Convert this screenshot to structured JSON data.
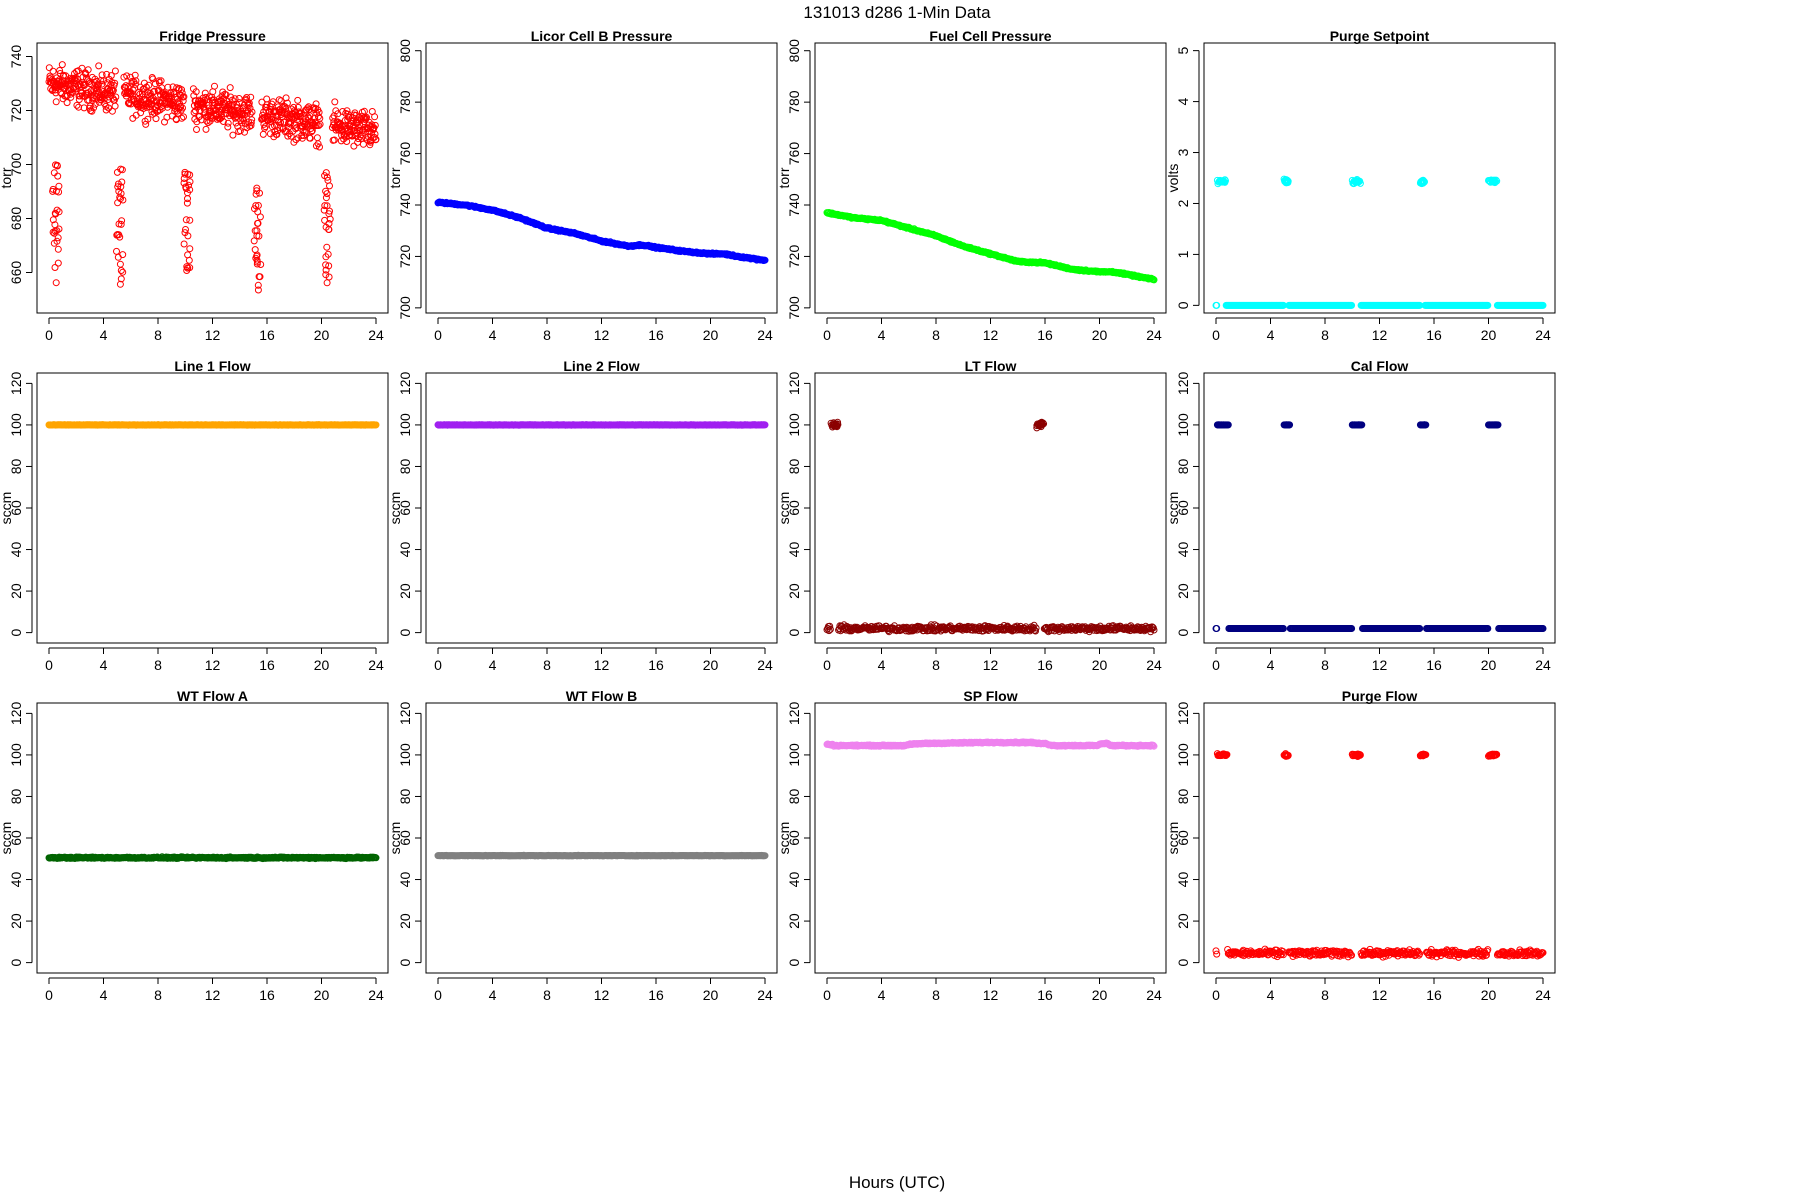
{
  "figure": {
    "title": "131013    d286    1-Min Data",
    "xlabel": "Hours (UTC)"
  },
  "chart_data": [
    {
      "type": "scatter",
      "title": "Fridge Pressure",
      "ylabel": "torr",
      "color": "#ff0000",
      "xlim": [
        0,
        24
      ],
      "ylim": [
        645,
        745
      ],
      "xticks": [
        0,
        4,
        8,
        12,
        16,
        20,
        24
      ],
      "yticks": [
        660,
        680,
        700,
        720,
        740
      ],
      "pattern": "noisy-drift",
      "start": 730,
      "end": 712,
      "noise": 6,
      "dip_value": 672,
      "dip_spread": 20,
      "segments": [
        [
          0.0,
          4.9
        ],
        [
          5.5,
          9.9
        ],
        [
          10.6,
          14.9
        ],
        [
          15.6,
          19.9
        ],
        [
          20.8,
          24.0
        ]
      ],
      "dips": [
        0.5,
        5.2,
        10.1,
        15.3,
        20.4
      ]
    },
    {
      "type": "scatter",
      "title": "Licor Cell B Pressure",
      "ylabel": "torr",
      "color": "#0000ff",
      "xlim": [
        0,
        24
      ],
      "ylim": [
        698,
        803
      ],
      "xticks": [
        0,
        4,
        8,
        12,
        16,
        20,
        24
      ],
      "yticks": [
        700,
        720,
        740,
        760,
        780,
        800
      ],
      "pattern": "curve",
      "curve": [
        [
          0,
          741
        ],
        [
          2,
          740
        ],
        [
          4,
          738
        ],
        [
          6,
          735
        ],
        [
          8,
          731
        ],
        [
          10,
          729
        ],
        [
          12,
          726
        ],
        [
          14,
          724
        ],
        [
          15,
          724.5
        ],
        [
          16,
          723.5
        ],
        [
          18,
          722
        ],
        [
          20,
          721
        ],
        [
          21,
          721
        ],
        [
          22,
          720
        ],
        [
          24,
          718.5
        ]
      ]
    },
    {
      "type": "scatter",
      "title": "Fuel Cell Pressure",
      "ylabel": "torr",
      "color": "#00ff00",
      "xlim": [
        0,
        24
      ],
      "ylim": [
        698,
        803
      ],
      "xticks": [
        0,
        4,
        8,
        12,
        16,
        20,
        24
      ],
      "yticks": [
        700,
        720,
        740,
        760,
        780,
        800
      ],
      "pattern": "curve",
      "curve": [
        [
          0,
          737
        ],
        [
          2,
          735
        ],
        [
          4,
          734
        ],
        [
          6,
          731
        ],
        [
          8,
          728
        ],
        [
          10,
          724
        ],
        [
          12,
          721
        ],
        [
          14,
          718
        ],
        [
          16,
          717.5
        ],
        [
          18,
          715
        ],
        [
          20,
          714
        ],
        [
          21,
          714
        ],
        [
          22,
          713
        ],
        [
          24,
          711
        ]
      ]
    },
    {
      "type": "scatter",
      "title": "Purge Setpoint",
      "ylabel": "volts",
      "color": "#00ffff",
      "xlim": [
        0,
        24
      ],
      "ylim": [
        -0.15,
        5.15
      ],
      "xticks": [
        0,
        4,
        8,
        12,
        16,
        20,
        24
      ],
      "yticks": [
        0,
        1,
        2,
        3,
        4,
        5
      ],
      "pattern": "baseline-spikes",
      "baseline": 0,
      "baseline_noise": 0,
      "spike_value": 2.43,
      "spike_noise": 0.04,
      "spikes": [
        [
          0.1,
          0.7
        ],
        [
          5.0,
          5.3
        ],
        [
          10.0,
          10.6
        ],
        [
          15.0,
          15.3
        ],
        [
          20.0,
          20.6
        ]
      ]
    },
    {
      "type": "scatter",
      "title": "Line 1 Flow",
      "ylabel": "sccm",
      "color": "#ffa500",
      "xlim": [
        0,
        24
      ],
      "ylim": [
        -5,
        125
      ],
      "xticks": [
        0,
        4,
        8,
        12,
        16,
        20,
        24
      ],
      "yticks": [
        0,
        20,
        40,
        60,
        80,
        100,
        120
      ],
      "pattern": "constant",
      "value": 100,
      "noise": 0.1
    },
    {
      "type": "scatter",
      "title": "Line 2 Flow",
      "ylabel": "sccm",
      "color": "#a020f0",
      "xlim": [
        0,
        24
      ],
      "ylim": [
        -5,
        125
      ],
      "xticks": [
        0,
        4,
        8,
        12,
        16,
        20,
        24
      ],
      "yticks": [
        0,
        20,
        40,
        60,
        80,
        100,
        120
      ],
      "pattern": "constant",
      "value": 100,
      "noise": 0.1
    },
    {
      "type": "scatter",
      "title": "LT Flow",
      "ylabel": "sccm",
      "color": "#8b0000",
      "xlim": [
        0,
        24
      ],
      "ylim": [
        -5,
        125
      ],
      "xticks": [
        0,
        4,
        8,
        12,
        16,
        20,
        24
      ],
      "yticks": [
        0,
        20,
        40,
        60,
        80,
        100,
        120
      ],
      "pattern": "baseline-spikes",
      "baseline": 2,
      "baseline_noise": 1.2,
      "spike_value": 100,
      "spike_noise": 1.2,
      "spikes": [
        [
          0.3,
          0.8
        ],
        [
          15.4,
          15.9
        ]
      ]
    },
    {
      "type": "scatter",
      "title": "Cal Flow",
      "ylabel": "sccm",
      "color": "#000080",
      "xlim": [
        0,
        24
      ],
      "ylim": [
        -5,
        125
      ],
      "xticks": [
        0,
        4,
        8,
        12,
        16,
        20,
        24
      ],
      "yticks": [
        0,
        20,
        40,
        60,
        80,
        100,
        120
      ],
      "pattern": "baseline-spikes",
      "baseline": 2,
      "baseline_noise": 0,
      "spike_value": 100,
      "spike_noise": 0,
      "spikes": [
        [
          0.1,
          0.9
        ],
        [
          5.0,
          5.4
        ],
        [
          10.0,
          10.7
        ],
        [
          15.0,
          15.4
        ],
        [
          20.0,
          20.7
        ]
      ]
    },
    {
      "type": "scatter",
      "title": "WT Flow A",
      "ylabel": "sccm",
      "color": "#006400",
      "xlim": [
        0,
        24
      ],
      "ylim": [
        -5,
        125
      ],
      "xticks": [
        0,
        4,
        8,
        12,
        16,
        20,
        24
      ],
      "yticks": [
        0,
        20,
        40,
        60,
        80,
        100,
        120
      ],
      "pattern": "constant",
      "value": 50.5,
      "noise": 0.3
    },
    {
      "type": "scatter",
      "title": "WT Flow B",
      "ylabel": "sccm",
      "color": "#808080",
      "xlim": [
        0,
        24
      ],
      "ylim": [
        -5,
        125
      ],
      "xticks": [
        0,
        4,
        8,
        12,
        16,
        20,
        24
      ],
      "yticks": [
        0,
        20,
        40,
        60,
        80,
        100,
        120
      ],
      "pattern": "constant",
      "value": 51.5,
      "noise": 0.1
    },
    {
      "type": "scatter",
      "title": "SP Flow",
      "ylabel": "sccm",
      "color": "#ee82ee",
      "xlim": [
        0,
        24
      ],
      "ylim": [
        -5,
        125
      ],
      "xticks": [
        0,
        4,
        8,
        12,
        16,
        20,
        24
      ],
      "yticks": [
        0,
        20,
        40,
        60,
        80,
        100,
        120
      ],
      "pattern": "curve",
      "curve": [
        [
          0,
          105
        ],
        [
          0.4,
          105
        ],
        [
          0.5,
          104.5
        ],
        [
          5.8,
          104.5
        ],
        [
          6.0,
          105
        ],
        [
          7.0,
          105.5
        ],
        [
          12,
          106
        ],
        [
          15,
          106
        ],
        [
          15.5,
          105.5
        ],
        [
          16,
          105.5
        ],
        [
          16.6,
          104.5
        ],
        [
          19.9,
          104.5
        ],
        [
          20.1,
          105.5
        ],
        [
          20.6,
          105.5
        ],
        [
          20.8,
          104.5
        ],
        [
          24,
          104.5
        ]
      ]
    },
    {
      "type": "scatter",
      "title": "Purge Flow",
      "ylabel": "sccm",
      "color": "#ff0000",
      "xlim": [
        0,
        24
      ],
      "ylim": [
        -5,
        125
      ],
      "xticks": [
        0,
        4,
        8,
        12,
        16,
        20,
        24
      ],
      "yticks": [
        0,
        20,
        40,
        60,
        80,
        100,
        120
      ],
      "pattern": "baseline-spikes",
      "baseline": 4.5,
      "baseline_noise": 1.3,
      "spike_value": 100,
      "spike_noise": 0.6,
      "spikes": [
        [
          0.1,
          0.8
        ],
        [
          5.0,
          5.3
        ],
        [
          10.0,
          10.6
        ],
        [
          15.0,
          15.4
        ],
        [
          20.0,
          20.6
        ]
      ]
    }
  ]
}
